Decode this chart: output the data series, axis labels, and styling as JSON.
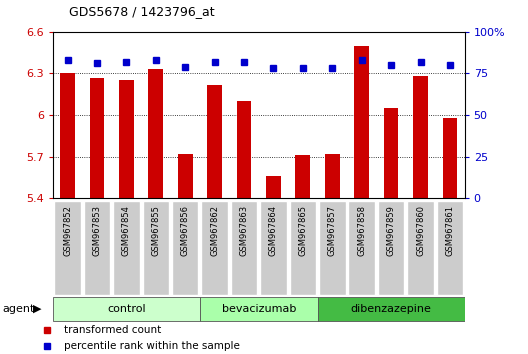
{
  "title": "GDS5678 / 1423796_at",
  "samples": [
    "GSM967852",
    "GSM967853",
    "GSM967854",
    "GSM967855",
    "GSM967856",
    "GSM967862",
    "GSM967863",
    "GSM967864",
    "GSM967865",
    "GSM967857",
    "GSM967858",
    "GSM967859",
    "GSM967860",
    "GSM967861"
  ],
  "bar_values": [
    6.3,
    6.27,
    6.25,
    6.33,
    5.72,
    6.22,
    6.1,
    5.56,
    5.71,
    5.72,
    6.5,
    6.05,
    6.28,
    5.98
  ],
  "dot_values": [
    83,
    81,
    82,
    83,
    79,
    82,
    82,
    78,
    78,
    78,
    83,
    80,
    82,
    80
  ],
  "bar_color": "#CC0000",
  "dot_color": "#0000CC",
  "ylim_left": [
    5.4,
    6.6
  ],
  "ylim_right": [
    0,
    100
  ],
  "yticks_left": [
    5.4,
    5.7,
    6.0,
    6.3,
    6.6
  ],
  "yticks_right": [
    0,
    25,
    50,
    75,
    100
  ],
  "ytick_labels_left": [
    "5.4",
    "5.7",
    "6",
    "6.3",
    "6.6"
  ],
  "ytick_labels_right": [
    "0",
    "25",
    "50",
    "75",
    "100%"
  ],
  "grid_values": [
    5.7,
    6.0,
    6.3
  ],
  "group_spans": [
    {
      "start": 0,
      "end": 4,
      "label": "control",
      "light_color": "#ccffcc",
      "dark_color": "#ccffcc"
    },
    {
      "start": 5,
      "end": 8,
      "label": "bevacizumab",
      "light_color": "#aaffaa",
      "dark_color": "#aaffaa"
    },
    {
      "start": 9,
      "end": 13,
      "label": "dibenzazepine",
      "light_color": "#55cc55",
      "dark_color": "#55cc55"
    }
  ],
  "legend_labels": [
    "transformed count",
    "percentile rank within the sample"
  ],
  "legend_colors": [
    "#CC0000",
    "#0000CC"
  ],
  "background_color": "#ffffff",
  "sample_box_color": "#cccccc"
}
